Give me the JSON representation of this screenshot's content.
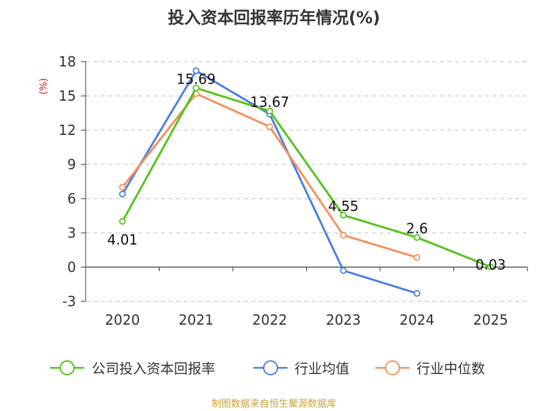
{
  "chart_data": {
    "type": "line",
    "title": "投入资本回报率历年情况(%)",
    "ylabel": "(%)",
    "xlabel": "",
    "categories": [
      "2020",
      "2021",
      "2022",
      "2023",
      "2024",
      "2025"
    ],
    "ylim": [
      -3,
      18
    ],
    "yticks": [
      -3,
      0,
      3,
      6,
      9,
      12,
      15,
      18
    ],
    "grid": true,
    "legend_position": "bottom",
    "series": [
      {
        "name": "公司投入资本回报率",
        "color": "#52c41a",
        "values": [
          4.01,
          15.69,
          13.67,
          4.55,
          2.6,
          0.03
        ],
        "labels": [
          "4.01",
          "15.69",
          "13.67",
          "4.55",
          "2.6",
          "0.03"
        ]
      },
      {
        "name": "行业均值",
        "color": "#4a7fe0",
        "values": [
          6.4,
          17.2,
          13.4,
          -0.3,
          -2.3,
          null
        ]
      },
      {
        "name": "行业中位数",
        "color": "#f5905a",
        "values": [
          7.0,
          15.2,
          12.3,
          2.8,
          0.85,
          null
        ]
      }
    ]
  },
  "source": "制图数据来自恒生聚源数据库"
}
